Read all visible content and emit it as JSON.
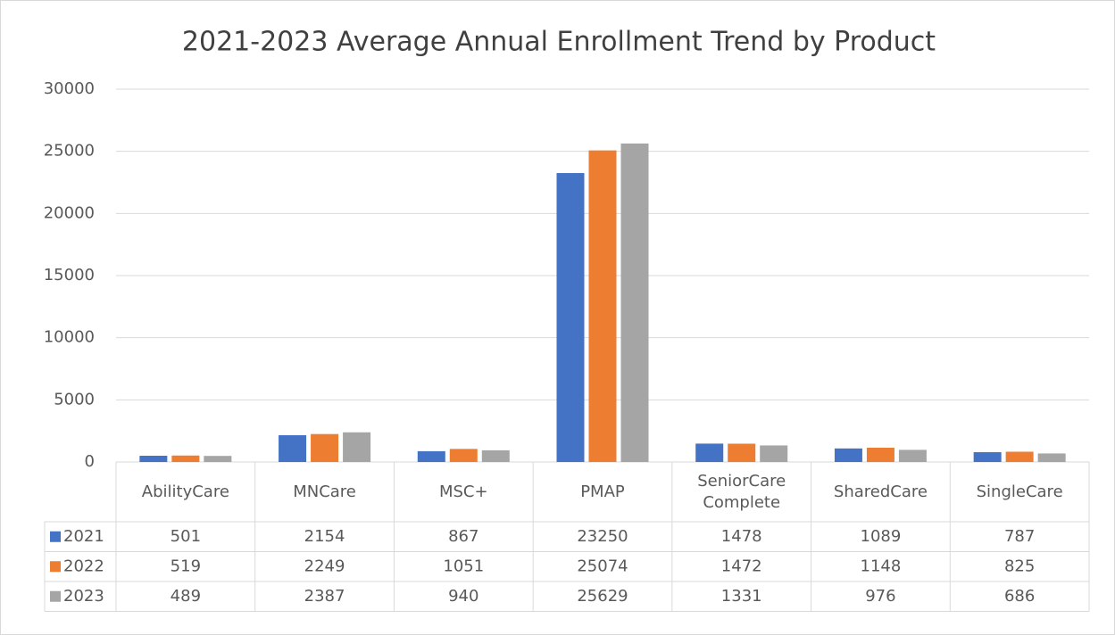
{
  "chart_data": {
    "type": "bar",
    "title": "2021-2023 Average Annual Enrollment Trend by Product",
    "categories": [
      "AbilityCare",
      "MNCare",
      "MSC+",
      "PMAP",
      "SeniorCare Complete",
      "SharedCare",
      "SingleCare"
    ],
    "series": [
      {
        "name": "2021",
        "color": "#4472c4",
        "values": [
          501,
          2154,
          867,
          23250,
          1478,
          1089,
          787
        ]
      },
      {
        "name": "2022",
        "color": "#ed7d31",
        "values": [
          519,
          2249,
          1051,
          25074,
          1472,
          1148,
          825
        ]
      },
      {
        "name": "2023",
        "color": "#a5a5a5",
        "values": [
          489,
          2387,
          940,
          25629,
          1331,
          976,
          686
        ]
      }
    ],
    "ylim": [
      0,
      30000
    ],
    "yticks": [
      0,
      5000,
      10000,
      15000,
      20000,
      25000,
      30000
    ],
    "grid": true,
    "data_table": true
  }
}
